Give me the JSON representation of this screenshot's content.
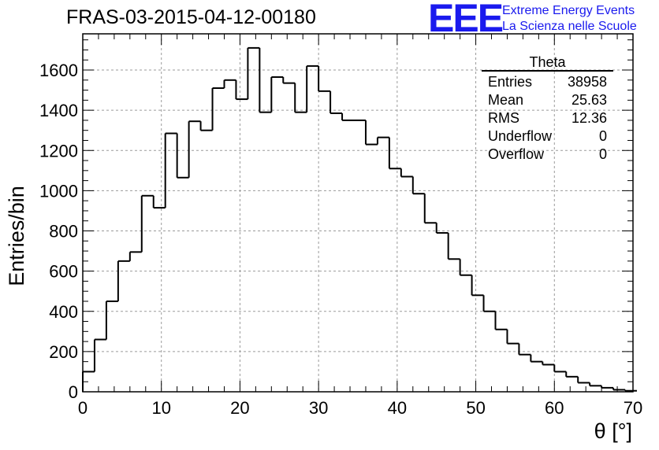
{
  "header": {
    "title": "FRAS-03-2015-04-12-00180",
    "logo_text": "EEE",
    "logo_line1": "Extreme Energy Events",
    "logo_line2": "La Scienza nelle Scuole",
    "logo_color": "#1a1aee"
  },
  "stats": {
    "title": "Theta",
    "rows": [
      {
        "label": "Entries",
        "value": "38958"
      },
      {
        "label": "Mean",
        "value": "25.63"
      },
      {
        "label": "RMS",
        "value": "12.36"
      },
      {
        "label": "Underflow",
        "value": "0"
      },
      {
        "label": "Overflow",
        "value": "0"
      }
    ]
  },
  "chart_data": {
    "type": "histogram",
    "xlabel": "θ [°]",
    "ylabel": "Entries/bin",
    "xlim": [
      0,
      70
    ],
    "ylim": [
      0,
      1780
    ],
    "bin_width": 1.5,
    "x_ticks": [
      0,
      10,
      20,
      30,
      40,
      50,
      60,
      70
    ],
    "y_ticks": [
      0,
      200,
      400,
      600,
      800,
      1000,
      1200,
      1400,
      1600
    ],
    "grid": true,
    "values": [
      100,
      260,
      450,
      650,
      695,
      975,
      915,
      1285,
      1065,
      1345,
      1300,
      1510,
      1550,
      1455,
      1710,
      1390,
      1565,
      1535,
      1390,
      1620,
      1495,
      1385,
      1350,
      1350,
      1230,
      1265,
      1110,
      1070,
      985,
      840,
      790,
      660,
      580,
      480,
      400,
      310,
      240,
      185,
      150,
      135,
      100,
      75,
      45,
      30,
      20,
      10,
      5
    ]
  }
}
